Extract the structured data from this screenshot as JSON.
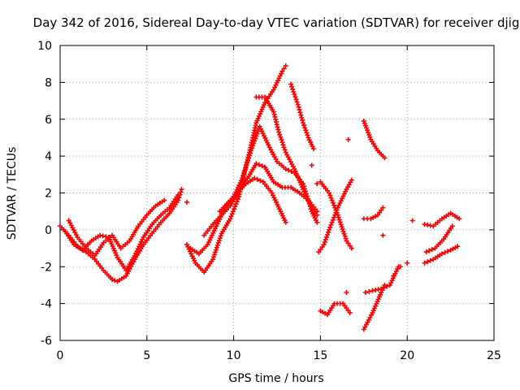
{
  "chart_data": {
    "type": "scatter",
    "title": "Day 342 of 2016, Sidereal Day-to-day VTEC variation (SDTVAR) for receiver djig",
    "xlabel": "GPS time / hours",
    "ylabel": "SDTVAR / TECUs",
    "xlim": [
      0,
      25
    ],
    "ylim": [
      -6,
      10
    ],
    "xticks": [
      "0",
      "5",
      "10",
      "15",
      "20",
      "25"
    ],
    "yticks": [
      "-6",
      "-4",
      "-2",
      "0",
      "2",
      "4",
      "6",
      "8",
      "10"
    ],
    "grid": true,
    "marker": "plus",
    "color": "#ff0000",
    "series": [
      {
        "name": "track-1",
        "x": [
          0.0,
          0.5,
          1.0,
          1.5,
          2.0,
          2.5,
          3.0,
          3.3,
          3.8,
          4.3,
          4.8,
          5.3,
          5.8,
          6.3,
          6.8,
          7.0
        ],
        "y": [
          0.2,
          -0.3,
          -0.9,
          -1.2,
          -1.6,
          -2.2,
          -2.7,
          -2.8,
          -2.5,
          -1.6,
          -0.8,
          -0.2,
          0.4,
          0.9,
          1.6,
          2.2
        ]
      },
      {
        "name": "track-2",
        "x": [
          0.3,
          0.8,
          1.3,
          1.8,
          2.3,
          2.8,
          3.3,
          3.8,
          4.3,
          4.8,
          5.3,
          5.8,
          6.3,
          6.8
        ],
        "y": [
          -0.1,
          -0.8,
          -1.1,
          -0.6,
          -0.3,
          -0.4,
          -1.5,
          -2.2,
          -1.4,
          -0.4,
          0.3,
          0.8,
          1.2,
          1.9
        ]
      },
      {
        "name": "track-3",
        "x": [
          0.5,
          1.0,
          1.5,
          2.0,
          2.5,
          3.0,
          3.5,
          4.0,
          4.5,
          5.0,
          5.5,
          6.0
        ],
        "y": [
          0.5,
          -0.4,
          -1.0,
          -1.4,
          -0.7,
          -0.3,
          -1.0,
          -0.6,
          0.2,
          0.8,
          1.3,
          1.6
        ]
      },
      {
        "name": "track-4",
        "x": [
          7.3,
          7.8,
          8.3,
          8.8,
          9.3,
          9.8,
          10.3,
          10.8,
          11.3,
          11.8,
          12.3,
          12.8,
          13.0
        ],
        "y": [
          -0.8,
          -1.8,
          -2.3,
          -1.6,
          -0.2,
          0.6,
          1.8,
          3.8,
          5.8,
          6.9,
          7.6,
          8.6,
          8.9
        ]
      },
      {
        "name": "track-5",
        "x": [
          7.5,
          8.0,
          8.5,
          9.0,
          9.5,
          10.0,
          10.5,
          11.0,
          11.5,
          12.0,
          12.5,
          13.0,
          13.5,
          14.0,
          14.5,
          14.8
        ],
        "y": [
          -1.0,
          -1.3,
          -0.8,
          0.2,
          1.2,
          1.8,
          2.8,
          4.3,
          5.6,
          4.6,
          3.7,
          3.3,
          3.1,
          2.5,
          1.0,
          0.4
        ]
      },
      {
        "name": "track-6",
        "x": [
          8.3,
          8.8,
          9.3,
          9.8,
          10.3,
          10.8,
          11.3,
          11.8,
          12.3,
          12.8,
          13.3,
          13.8,
          14.3,
          14.8
        ],
        "y": [
          -0.3,
          0.3,
          0.8,
          1.3,
          2.1,
          2.8,
          3.6,
          3.4,
          2.6,
          2.3,
          2.3,
          2.0,
          1.6,
          1.0
        ]
      },
      {
        "name": "track-7",
        "x": [
          9.2,
          9.7,
          10.2,
          10.7,
          11.2,
          11.7,
          12.2,
          12.7,
          13.0
        ],
        "y": [
          1.0,
          1.5,
          2.0,
          2.5,
          2.8,
          2.6,
          2.0,
          1.0,
          0.4
        ]
      },
      {
        "name": "track-8",
        "x": [
          11.3,
          11.8,
          12.3,
          12.6,
          13.0,
          13.5,
          14.0,
          14.5,
          14.8
        ],
        "y": [
          7.2,
          7.2,
          6.4,
          5.3,
          4.2,
          3.3,
          2.2,
          1.2,
          0.8
        ]
      },
      {
        "name": "track-9",
        "x": [
          13.3,
          13.7,
          14.0,
          14.3,
          14.6
        ],
        "y": [
          7.9,
          6.8,
          5.8,
          5.0,
          4.4
        ]
      },
      {
        "name": "track-10",
        "x": [
          15.0,
          15.5,
          16.0,
          16.5,
          16.8
        ],
        "y": [
          2.6,
          2.0,
          0.8,
          -0.6,
          -1.0
        ]
      },
      {
        "name": "track-11",
        "x": [
          14.9,
          15.2,
          15.5,
          16.0,
          16.5,
          16.8
        ],
        "y": [
          -1.2,
          -0.8,
          0.0,
          1.2,
          2.2,
          2.7
        ]
      },
      {
        "name": "track-12",
        "x": [
          15.0,
          15.4,
          15.8,
          16.3,
          16.7
        ],
        "y": [
          -4.4,
          -4.6,
          -4.0,
          -4.0,
          -4.5
        ]
      },
      {
        "name": "track-13",
        "x": [
          17.5,
          17.9,
          18.3,
          18.7
        ],
        "y": [
          5.9,
          4.9,
          4.3,
          3.9
        ]
      },
      {
        "name": "track-14",
        "x": [
          17.5,
          18.0,
          18.5,
          18.7
        ],
        "y": [
          -5.4,
          -4.5,
          -3.4,
          -3.0
        ]
      },
      {
        "name": "track-15",
        "x": [
          17.5,
          17.9,
          18.3,
          18.6
        ],
        "y": [
          0.6,
          0.6,
          0.8,
          1.2
        ]
      },
      {
        "name": "track-16",
        "x": [
          17.6,
          18.0,
          18.5,
          19.0,
          19.5
        ],
        "y": [
          -3.4,
          -3.3,
          -3.2,
          -3.0,
          -2.0
        ]
      },
      {
        "name": "track-17",
        "x": [
          21.0,
          21.5,
          22.0,
          22.5,
          23.0
        ],
        "y": [
          0.3,
          0.2,
          0.6,
          0.9,
          0.6
        ]
      },
      {
        "name": "track-18",
        "x": [
          21.0,
          21.5,
          22.0,
          22.5,
          22.9
        ],
        "y": [
          -1.8,
          -1.6,
          -1.3,
          -1.1,
          -0.9
        ]
      },
      {
        "name": "track-19",
        "x": [
          21.1,
          21.6,
          22.1,
          22.6
        ],
        "y": [
          -1.2,
          -1.0,
          -0.5,
          0.2
        ]
      },
      {
        "name": "scattered-points",
        "x": [
          7.3,
          16.6,
          18.6,
          19.2,
          19.6,
          20.0,
          20.3,
          16.5,
          14.8,
          14.5
        ],
        "y": [
          1.5,
          4.9,
          -0.3,
          -2.5,
          -2.0,
          -1.8,
          0.5,
          -3.4,
          2.5,
          3.5
        ]
      }
    ]
  }
}
